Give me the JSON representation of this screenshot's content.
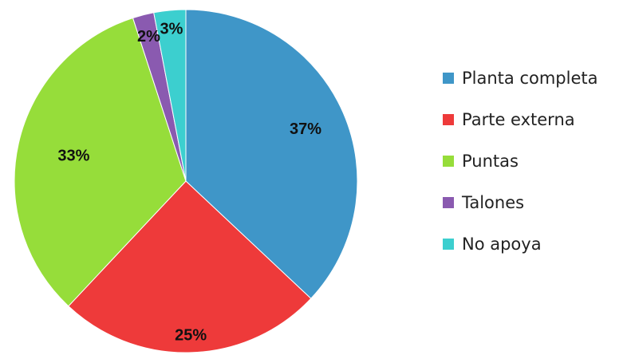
{
  "chart_data": {
    "type": "pie",
    "title": "",
    "slices": [
      {
        "label": "Planta completa",
        "value": 37,
        "display": "37%",
        "color": "#3f96c8"
      },
      {
        "label": "Parte externa",
        "value": 25,
        "display": "25%",
        "color": "#ee3a3a"
      },
      {
        "label": "Puntas",
        "value": 33,
        "display": "33%",
        "color": "#96dd3a"
      },
      {
        "label": "Talones",
        "value": 2,
        "display": "2%",
        "color": "#8a5ab0"
      },
      {
        "label": "No apoya",
        "value": 3,
        "display": "3%",
        "color": "#3ccfcf"
      }
    ],
    "legend_position": "right",
    "start_angle_deg": 0,
    "direction": "clockwise"
  }
}
